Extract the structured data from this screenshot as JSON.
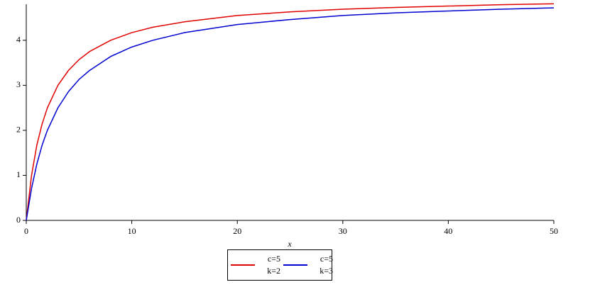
{
  "chart_data": {
    "type": "line",
    "x_label": "x",
    "x": [
      0,
      0.5,
      1,
      1.5,
      2,
      3,
      4,
      5,
      6,
      8,
      10,
      12,
      15,
      20,
      25,
      30,
      35,
      40,
      45,
      50
    ],
    "series": [
      {
        "name": "c=5\nk=2",
        "color": "#e00000",
        "values": [
          0,
          1.0,
          1.67,
          2.14,
          2.5,
          3.0,
          3.33,
          3.57,
          3.75,
          4.0,
          4.17,
          4.29,
          4.41,
          4.55,
          4.63,
          4.69,
          4.73,
          4.76,
          4.79,
          4.81
        ]
      },
      {
        "name": "c=5\nk=3",
        "color": "#0000d0",
        "values": [
          0,
          0.71,
          1.25,
          1.67,
          2.0,
          2.5,
          2.86,
          3.13,
          3.33,
          3.64,
          3.85,
          4.0,
          4.17,
          4.35,
          4.46,
          4.55,
          4.61,
          4.65,
          4.69,
          4.72
        ]
      }
    ],
    "xlim": [
      0,
      50
    ],
    "xticks": [
      0,
      10,
      20,
      30,
      40,
      50
    ],
    "ylim": [
      0,
      4.8
    ],
    "yticks": [
      0,
      1,
      2,
      3,
      4
    ]
  }
}
